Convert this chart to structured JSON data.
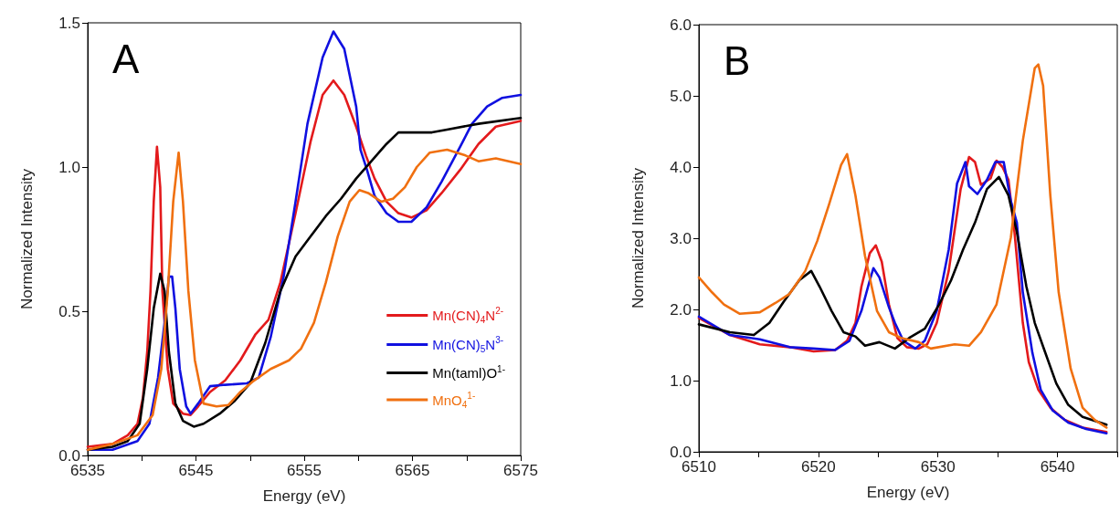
{
  "chart_data": [
    {
      "type": "line",
      "title": "A",
      "xlabel": "Energy (eV)",
      "ylabel": "Normalized Intensity",
      "xlim": [
        6535,
        6575
      ],
      "ylim": [
        0,
        1.5
      ],
      "xticks": [
        6535,
        {
          "value": 6540,
          "label": null
        },
        6545,
        {
          "value": 6550,
          "label": null
        },
        6555,
        {
          "value": 6560,
          "label": null
        },
        6565,
        {
          "value": 6570,
          "label": null
        },
        6575
      ],
      "yticks": [
        {
          "value": 0,
          "label": "0.0"
        },
        {
          "value": 0.5,
          "label": "0.5"
        },
        {
          "value": 1,
          "label": "1.0"
        },
        {
          "value": 1.5,
          "label": "1.5"
        }
      ],
      "grid": false,
      "marker": "none",
      "legend": "bottom right",
      "series": [
        {
          "name": "Mn(CN)$_{4}$N$^{2-}$",
          "color": "#e31a1c",
          "x": [
            6535.0,
            6537.3,
            6538.7,
            6539.6,
            6540.1,
            6540.5,
            6540.8,
            6541.1,
            6541.4,
            6541.7,
            6541.9,
            6542.4,
            6542.9,
            6543.8,
            6544.5,
            6545.2,
            6546.3,
            6547.7,
            6549.1,
            6550.5,
            6551.7,
            6552.8,
            6554.2,
            6555.6,
            6556.7,
            6557.7,
            6558.7,
            6559.8,
            6560.7,
            6561.5,
            6562.6,
            6563.7,
            6564.9,
            6566.3,
            6567.7,
            6569.4,
            6571.1,
            6572.7,
            6575.0
          ],
          "values": [
            0.03,
            0.04,
            0.07,
            0.11,
            0.2,
            0.36,
            0.57,
            0.88,
            1.07,
            0.93,
            0.57,
            0.3,
            0.18,
            0.145,
            0.14,
            0.17,
            0.22,
            0.26,
            0.33,
            0.42,
            0.47,
            0.6,
            0.84,
            1.09,
            1.25,
            1.3,
            1.25,
            1.14,
            1.04,
            0.96,
            0.88,
            0.84,
            0.825,
            0.85,
            0.91,
            0.99,
            1.08,
            1.14,
            1.16
          ]
        },
        {
          "name": "Mn(CN)$_{5}$N$^{3-}$",
          "color": "#1010e0",
          "x": [
            6535.0,
            6537.3,
            6539.6,
            6540.7,
            6541.5,
            6542.1,
            6542.5,
            6542.8,
            6543.1,
            6543.5,
            6544.1,
            6544.5,
            6545.2,
            6546.3,
            6547.7,
            6549.7,
            6550.8,
            6551.9,
            6553.1,
            6554.2,
            6555.3,
            6556.7,
            6557.7,
            6558.7,
            6559.8,
            6560.2,
            6560.8,
            6561.5,
            6562.6,
            6563.7,
            6564.9,
            6566.3,
            6567.7,
            6569.4,
            6570.5,
            6571.9,
            6573.3,
            6575.0
          ],
          "values": [
            0.02,
            0.02,
            0.05,
            0.11,
            0.27,
            0.46,
            0.62,
            0.62,
            0.51,
            0.3,
            0.17,
            0.145,
            0.18,
            0.24,
            0.245,
            0.25,
            0.27,
            0.41,
            0.62,
            0.88,
            1.15,
            1.38,
            1.47,
            1.41,
            1.21,
            1.06,
            0.99,
            0.9,
            0.84,
            0.81,
            0.81,
            0.86,
            0.95,
            1.07,
            1.15,
            1.21,
            1.24,
            1.25
          ]
        },
        {
          "name": "Mn(taml)O$^{1-}$",
          "color": "#000000",
          "x": [
            6535.0,
            6537.3,
            6538.7,
            6539.8,
            6540.5,
            6541.1,
            6541.7,
            6542.1,
            6542.5,
            6543.1,
            6543.8,
            6544.8,
            6545.7,
            6547.2,
            6548.6,
            6550.0,
            6551.4,
            6552.8,
            6554.2,
            6555.6,
            6557.0,
            6558.4,
            6559.8,
            6561.2,
            6562.6,
            6563.7,
            6565.4,
            6566.8,
            6568.2,
            6571.1,
            6575.0
          ],
          "values": [
            0.02,
            0.03,
            0.05,
            0.11,
            0.3,
            0.51,
            0.63,
            0.57,
            0.36,
            0.18,
            0.12,
            0.1,
            0.11,
            0.145,
            0.19,
            0.25,
            0.39,
            0.57,
            0.69,
            0.76,
            0.83,
            0.89,
            0.96,
            1.02,
            1.08,
            1.12,
            1.12,
            1.12,
            1.13,
            1.15,
            1.17
          ]
        },
        {
          "name": "MnO$_{4}$$^{1-}$",
          "color": "#f07010",
          "x": [
            6535.0,
            6537.3,
            6539.6,
            6541.0,
            6541.8,
            6542.4,
            6542.9,
            6543.4,
            6543.8,
            6544.3,
            6544.9,
            6545.7,
            6546.9,
            6548.0,
            6549.1,
            6550.2,
            6551.9,
            6553.6,
            6554.7,
            6555.9,
            6557.0,
            6558.1,
            6559.2,
            6560.1,
            6560.9,
            6562.1,
            6563.2,
            6564.3,
            6565.4,
            6566.6,
            6568.2,
            6569.9,
            6571.1,
            6572.7,
            6575.0
          ],
          "values": [
            0.02,
            0.04,
            0.07,
            0.14,
            0.3,
            0.57,
            0.88,
            1.05,
            0.88,
            0.57,
            0.33,
            0.18,
            0.17,
            0.175,
            0.22,
            0.255,
            0.3,
            0.33,
            0.37,
            0.46,
            0.6,
            0.76,
            0.88,
            0.92,
            0.91,
            0.88,
            0.89,
            0.93,
            1.0,
            1.05,
            1.06,
            1.04,
            1.02,
            1.03,
            1.01
          ]
        }
      ]
    },
    {
      "type": "line",
      "title": "B",
      "xlabel": "Energy (eV)",
      "ylabel": "Normalized Intensity",
      "xlim": [
        6510,
        6545
      ],
      "ylim": [
        0,
        6
      ],
      "xticks": [
        6510,
        {
          "value": 6515,
          "label": null
        },
        6520,
        {
          "value": 6525,
          "label": null
        },
        6530,
        {
          "value": 6535,
          "label": null
        },
        6540,
        {
          "value": 6545,
          "label": null
        }
      ],
      "yticks": [
        {
          "value": 0,
          "label": "0.0"
        },
        {
          "value": 1,
          "label": "1.0"
        },
        {
          "value": 2,
          "label": "2.0"
        },
        {
          "value": 3,
          "label": "3.0"
        },
        {
          "value": 4,
          "label": "4.0"
        },
        {
          "value": 5,
          "label": "5.0"
        },
        {
          "value": 6,
          "label": "6.0"
        }
      ],
      "grid": false,
      "marker": "none",
      "series": [
        {
          "color": "#e31a1c",
          "x": [
            6510.0,
            6512.6,
            6515.1,
            6517.6,
            6519.6,
            6521.4,
            6522.4,
            6523.1,
            6523.6,
            6524.3,
            6524.8,
            6525.3,
            6525.9,
            6526.6,
            6527.4,
            6528.4,
            6529.1,
            6529.9,
            6530.9,
            6531.9,
            6532.6,
            6533.1,
            6533.6,
            6534.4,
            6534.9,
            6535.4,
            6535.9,
            6536.4,
            6537.1,
            6537.6,
            6538.4,
            6539.4,
            6540.6,
            6542.1,
            6544.1
          ],
          "values": [
            1.88,
            1.64,
            1.51,
            1.47,
            1.41,
            1.43,
            1.56,
            1.81,
            2.32,
            2.79,
            2.9,
            2.67,
            2.07,
            1.6,
            1.47,
            1.45,
            1.51,
            1.81,
            2.54,
            3.69,
            4.14,
            4.07,
            3.75,
            3.84,
            4.09,
            4.0,
            3.82,
            3.09,
            1.81,
            1.26,
            0.87,
            0.62,
            0.45,
            0.34,
            0.28
          ]
        },
        {
          "color": "#1010e0",
          "x": [
            6510.0,
            6512.6,
            6515.1,
            6517.6,
            6519.6,
            6521.4,
            6522.6,
            6523.6,
            6524.3,
            6524.6,
            6525.1,
            6525.9,
            6526.4,
            6527.1,
            6528.1,
            6528.9,
            6529.9,
            6530.9,
            6531.6,
            6532.3,
            6532.6,
            6533.3,
            6534.1,
            6534.8,
            6535.5,
            6536.1,
            6536.6,
            6537.1,
            6537.9,
            6538.6,
            6539.6,
            6540.9,
            6542.4,
            6544.1
          ],
          "values": [
            1.9,
            1.64,
            1.58,
            1.47,
            1.45,
            1.43,
            1.56,
            1.98,
            2.41,
            2.58,
            2.45,
            2.03,
            1.81,
            1.56,
            1.45,
            1.56,
            1.98,
            2.84,
            3.77,
            4.07,
            3.73,
            3.62,
            3.82,
            4.07,
            4.07,
            3.52,
            3.22,
            2.24,
            1.39,
            0.87,
            0.58,
            0.41,
            0.32,
            0.26
          ]
        },
        {
          "color": "#000000",
          "x": [
            6510.0,
            6512.6,
            6514.6,
            6515.9,
            6517.1,
            6518.4,
            6519.4,
            6520.1,
            6521.1,
            6522.1,
            6523.1,
            6523.9,
            6525.1,
            6526.4,
            6527.6,
            6528.9,
            6530.1,
            6531.1,
            6532.1,
            6533.1,
            6534.1,
            6535.1,
            6535.9,
            6536.6,
            6537.4,
            6538.1,
            6538.9,
            6539.9,
            6540.9,
            6542.1,
            6544.1
          ],
          "values": [
            1.79,
            1.68,
            1.64,
            1.81,
            2.11,
            2.41,
            2.54,
            2.32,
            1.98,
            1.68,
            1.62,
            1.49,
            1.54,
            1.45,
            1.6,
            1.73,
            2.07,
            2.41,
            2.84,
            3.22,
            3.69,
            3.86,
            3.6,
            3.09,
            2.32,
            1.81,
            1.43,
            0.96,
            0.66,
            0.49,
            0.38
          ]
        },
        {
          "color": "#f07010",
          "x": [
            6510.0,
            6511.1,
            6512.1,
            6513.4,
            6515.1,
            6516.4,
            6517.6,
            6518.9,
            6519.9,
            6520.9,
            6521.9,
            6522.4,
            6523.1,
            6523.9,
            6524.9,
            6525.9,
            6526.9,
            6528.4,
            6529.4,
            6531.4,
            6532.6,
            6533.6,
            6534.9,
            6536.1,
            6537.1,
            6538.1,
            6538.4,
            6538.8,
            6539.4,
            6540.1,
            6541.1,
            6542.1,
            6543.1,
            6544.1
          ],
          "values": [
            2.45,
            2.24,
            2.07,
            1.94,
            1.96,
            2.09,
            2.22,
            2.54,
            2.96,
            3.48,
            4.03,
            4.18,
            3.6,
            2.75,
            1.98,
            1.68,
            1.6,
            1.54,
            1.45,
            1.51,
            1.49,
            1.68,
            2.07,
            3.01,
            4.37,
            5.39,
            5.44,
            5.14,
            3.6,
            2.24,
            1.17,
            0.62,
            0.45,
            0.34
          ]
        }
      ]
    }
  ]
}
